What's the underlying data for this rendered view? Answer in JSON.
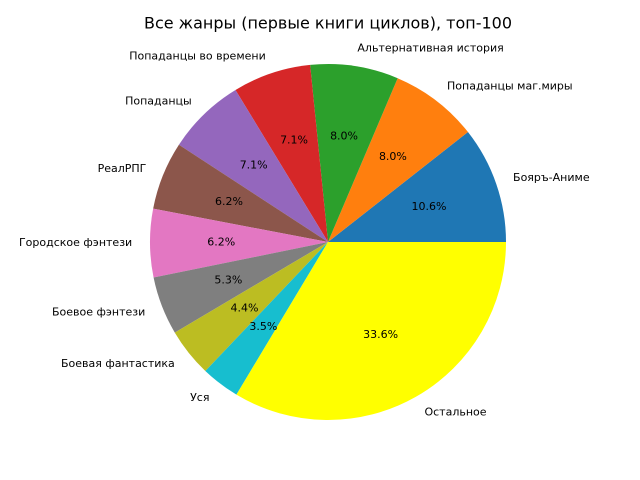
{
  "chart_data": {
    "type": "pie",
    "title": "Все жанры (первые книги циклов), топ-100",
    "categories": [
      "Бояръ-Аниме",
      "Попаданцы маг.миры",
      "Альтернативная история",
      "Попаданцы во времени",
      "Попаданцы",
      "РеалРПГ",
      "Городское фэнтези",
      "Боевое фэнтези",
      "Боевая фантастика",
      "Уся",
      "Остальное"
    ],
    "values": [
      10.6,
      8.0,
      8.0,
      7.1,
      7.1,
      6.2,
      6.2,
      5.3,
      4.4,
      3.5,
      33.6
    ],
    "value_labels": [
      "10.6%",
      "8.0%",
      "8.0%",
      "7.1%",
      "7.1%",
      "6.2%",
      "6.2%",
      "5.3%",
      "4.4%",
      "3.5%",
      "33.6%"
    ],
    "colors": [
      "#1f77b4",
      "#ff7f0e",
      "#2ca02c",
      "#d62728",
      "#9467bd",
      "#8c564b",
      "#e377c2",
      "#7f7f7f",
      "#bcbd22",
      "#17becf",
      "#ffff00"
    ]
  }
}
